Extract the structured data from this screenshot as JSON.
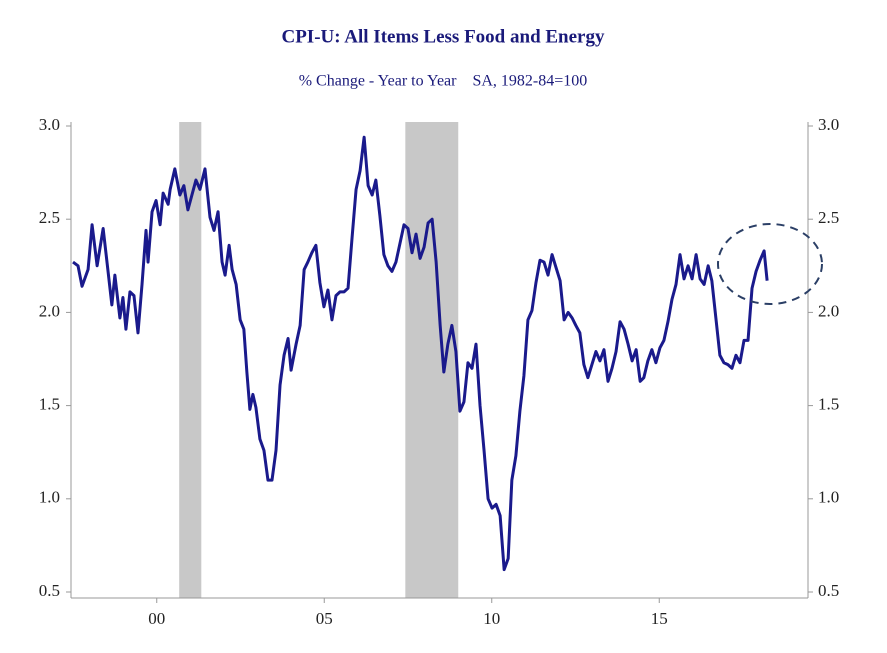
{
  "chart_data": {
    "type": "line",
    "title": "CPI-U: All Items Less Food and Energy",
    "subtitle": "% Change - Year to Year    SA, 1982-84=100",
    "xlim": [
      1998,
      2020
    ],
    "xticks": [
      {
        "value": 2000.5,
        "label": "00"
      },
      {
        "value": 2005.5,
        "label": "05"
      },
      {
        "value": 2010.5,
        "label": "10"
      },
      {
        "value": 2015.5,
        "label": "15"
      }
    ],
    "ylim": [
      0.5,
      3.0
    ],
    "yticks": [
      0.5,
      {
        "value": 1.0,
        "label": "1.0"
      },
      1.5,
      {
        "value": 2.0,
        "label": "2.0"
      },
      2.5,
      {
        "value": 3.0,
        "label": "3.0"
      }
    ],
    "y2lim": [
      0.5,
      3.0
    ],
    "y2ticks": [
      0.5,
      {
        "value": 1.0,
        "label": "1.0"
      },
      1.5,
      {
        "value": 2.0,
        "label": "2.0"
      },
      2.5,
      {
        "value": 3.0,
        "label": "3.0"
      }
    ],
    "recessions": [
      [
        2001.17,
        2001.83
      ],
      [
        2007.92,
        2009.5
      ]
    ],
    "recession_color": "#c8c8c8",
    "series": [
      {
        "color": "#1a1a8c",
        "x": [
          1998.0,
          1998.15,
          1998.27,
          1998.45,
          1998.57,
          1998.72,
          1998.9,
          1999.04,
          1999.16,
          1999.25,
          1999.4,
          1999.49,
          1999.58,
          1999.7,
          1999.82,
          1999.94,
          2000.06,
          2000.18,
          2000.24,
          2000.36,
          2000.48,
          2000.6,
          2000.69,
          2000.84,
          2000.9,
          2001.04,
          2001.19,
          2001.31,
          2001.43,
          2001.55,
          2001.67,
          2001.79,
          2001.94,
          2002.09,
          2002.21,
          2002.33,
          2002.45,
          2002.54,
          2002.66,
          2002.75,
          2002.87,
          2002.99,
          2003.1,
          2003.19,
          2003.28,
          2003.37,
          2003.46,
          2003.58,
          2003.7,
          2003.82,
          2003.94,
          2004.06,
          2004.18,
          2004.3,
          2004.42,
          2004.51,
          2004.66,
          2004.78,
          2004.9,
          2005.01,
          2005.13,
          2005.25,
          2005.37,
          2005.49,
          2005.61,
          2005.73,
          2005.85,
          2005.97,
          2006.09,
          2006.21,
          2006.33,
          2006.45,
          2006.57,
          2006.69,
          2006.81,
          2006.93,
          2007.04,
          2007.16,
          2007.28,
          2007.4,
          2007.52,
          2007.64,
          2007.76,
          2007.88,
          2008.0,
          2008.12,
          2008.24,
          2008.36,
          2008.48,
          2008.6,
          2008.72,
          2008.84,
          2008.96,
          2009.07,
          2009.19,
          2009.31,
          2009.43,
          2009.55,
          2009.67,
          2009.79,
          2009.91,
          2010.03,
          2010.15,
          2010.27,
          2010.39,
          2010.51,
          2010.63,
          2010.75,
          2010.87,
          2010.99,
          2011.1,
          2011.22,
          2011.34,
          2011.46,
          2011.58,
          2011.7,
          2011.82,
          2011.94,
          2012.06,
          2012.18,
          2012.3,
          2012.42,
          2012.54,
          2012.66,
          2012.78,
          2012.9,
          2013.01,
          2013.13,
          2013.25,
          2013.37,
          2013.49,
          2013.61,
          2013.73,
          2013.85,
          2013.97,
          2014.09,
          2014.21,
          2014.33,
          2014.45,
          2014.57,
          2014.69,
          2014.81,
          2014.93,
          2015.04,
          2015.16,
          2015.28,
          2015.4,
          2015.52,
          2015.64,
          2015.76,
          2015.88,
          2016.0,
          2016.12,
          2016.24,
          2016.36,
          2016.48,
          2016.6,
          2016.72,
          2016.84,
          2016.96,
          2017.07,
          2017.19,
          2017.31,
          2017.43,
          2017.55,
          2017.67,
          2017.79,
          2017.91,
          2018.03,
          2018.15,
          2018.27,
          2018.39,
          2018.51,
          2018.63,
          2018.72
        ],
        "values": [
          2.27,
          2.25,
          2.14,
          2.23,
          2.47,
          2.25,
          2.45,
          2.23,
          2.04,
          2.2,
          1.97,
          2.08,
          1.91,
          2.11,
          2.09,
          1.89,
          2.15,
          2.44,
          2.27,
          2.54,
          2.6,
          2.47,
          2.64,
          2.58,
          2.66,
          2.77,
          2.63,
          2.68,
          2.55,
          2.63,
          2.71,
          2.66,
          2.77,
          2.51,
          2.44,
          2.54,
          2.27,
          2.2,
          2.36,
          2.23,
          2.15,
          1.96,
          1.91,
          1.68,
          1.48,
          1.56,
          1.49,
          1.32,
          1.26,
          1.1,
          1.1,
          1.26,
          1.61,
          1.77,
          1.86,
          1.69,
          1.83,
          1.93,
          2.23,
          2.27,
          2.32,
          2.36,
          2.16,
          2.03,
          2.12,
          1.96,
          2.09,
          2.11,
          2.11,
          2.13,
          2.4,
          2.66,
          2.76,
          2.94,
          2.68,
          2.63,
          2.71,
          2.52,
          2.31,
          2.25,
          2.22,
          2.27,
          2.37,
          2.47,
          2.45,
          2.32,
          2.42,
          2.29,
          2.35,
          2.48,
          2.5,
          2.27,
          1.93,
          1.68,
          1.83,
          1.93,
          1.79,
          1.47,
          1.52,
          1.73,
          1.7,
          1.83,
          1.5,
          1.26,
          1.0,
          0.95,
          0.97,
          0.91,
          0.62,
          0.68,
          1.1,
          1.23,
          1.47,
          1.66,
          1.96,
          2.01,
          2.16,
          2.28,
          2.27,
          2.2,
          2.31,
          2.24,
          2.17,
          1.96,
          2.0,
          1.97,
          1.93,
          1.89,
          1.72,
          1.65,
          1.72,
          1.79,
          1.74,
          1.8,
          1.63,
          1.7,
          1.79,
          1.95,
          1.91,
          1.83,
          1.74,
          1.8,
          1.63,
          1.65,
          1.74,
          1.8,
          1.73,
          1.81,
          1.85,
          1.95,
          2.07,
          2.15,
          2.31,
          2.18,
          2.25,
          2.18,
          2.31,
          2.18,
          2.15,
          2.25,
          2.17,
          1.97,
          1.77,
          1.73,
          1.72,
          1.7,
          1.77,
          1.73,
          1.85,
          1.85,
          2.13,
          2.22,
          2.28,
          2.33,
          2.17
        ]
      }
    ]
  }
}
